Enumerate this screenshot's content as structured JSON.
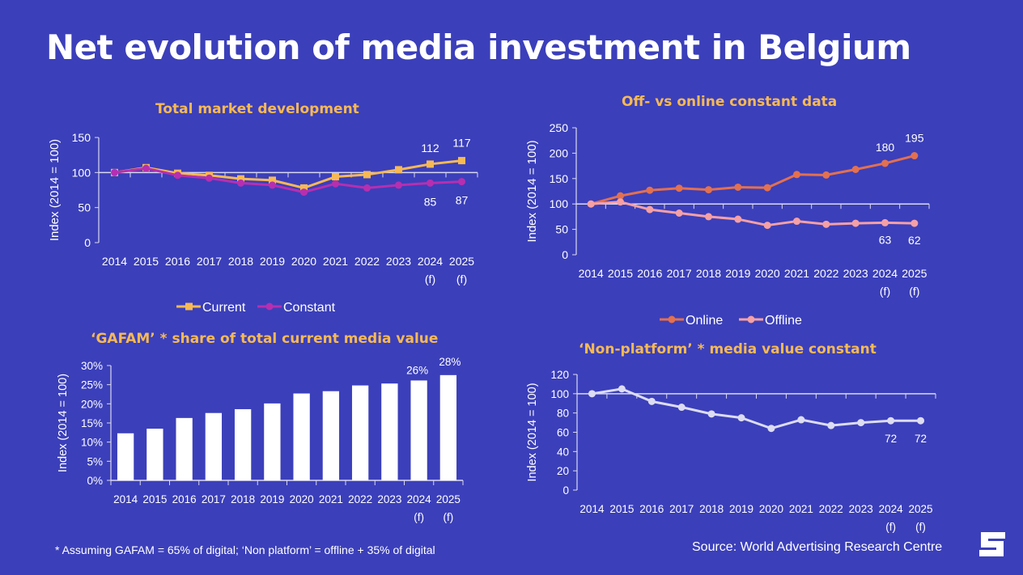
{
  "page": {
    "title": "Net evolution of media investment in Belgium",
    "footnote": "* Assuming GAFAM = 65% of digital; ‘Non platform’ = offline + 35% of digital",
    "source": "Source:  World Advertising Research Centre",
    "logo_icon": "s-logo-icon",
    "colors": {
      "background": "#3B3FBA",
      "title_accent": "#F7B955"
    }
  },
  "chart_data": [
    {
      "type": "line",
      "title": "Total market development",
      "ylabel": "Index (2014 = 100)",
      "xlabel": "",
      "categories": [
        "2014",
        "2015",
        "2016",
        "2017",
        "2018",
        "2019",
        "2020",
        "2021",
        "2022",
        "2023",
        "2024\n(f)",
        "2025\n(f)"
      ],
      "ylim": [
        0,
        150
      ],
      "yticks": [
        "0",
        "50",
        "100",
        "150"
      ],
      "baseline": 100,
      "legend": "bottom",
      "series": [
        {
          "name": "Current",
          "color": "#F7B955",
          "marker": "square",
          "values": [
            100,
            107,
            99,
            96,
            91,
            89,
            78,
            94,
            97,
            104,
            112,
            117
          ],
          "labels": {
            "10": "112",
            "11": "117"
          },
          "label_pos": "above"
        },
        {
          "name": "Constant",
          "color": "#B62FB0",
          "marker": "circle",
          "values": [
            100,
            106,
            96,
            92,
            85,
            82,
            72,
            84,
            78,
            82,
            85,
            87
          ],
          "labels": {
            "10": "85",
            "11": "87"
          },
          "label_pos": "below"
        }
      ]
    },
    {
      "type": "line",
      "title": "Off- vs online constant data",
      "ylabel": "Index (2014 = 100)",
      "xlabel": "",
      "categories": [
        "2014",
        "2015",
        "2016",
        "2017",
        "2018",
        "2019",
        "2020",
        "2021",
        "2022",
        "2023",
        "2024\n(f)",
        "2025\n(f)"
      ],
      "ylim": [
        0,
        250
      ],
      "yticks": [
        "0",
        "50",
        "100",
        "150",
        "200",
        "250"
      ],
      "baseline": 100,
      "legend": "bottom",
      "series": [
        {
          "name": "Online",
          "color": "#E3704F",
          "marker": "circle",
          "values": [
            100,
            116,
            127,
            131,
            128,
            133,
            132,
            158,
            157,
            168,
            180,
            195
          ],
          "labels": {
            "10": "180",
            "11": "195"
          },
          "label_pos": "above"
        },
        {
          "name": "Offline",
          "color": "#F5A0A6",
          "marker": "circle",
          "values": [
            100,
            104,
            89,
            82,
            75,
            70,
            58,
            66,
            60,
            62,
            63,
            62
          ],
          "labels": {
            "10": "63",
            "11": "62"
          },
          "label_pos": "below"
        }
      ]
    },
    {
      "type": "bar",
      "title": "‘GAFAM’ * share of  total  current media value",
      "ylabel": "Index (2014 = 100)",
      "xlabel": "",
      "categories": [
        "2014",
        "2015",
        "2016",
        "2017",
        "2018",
        "2019",
        "2020",
        "2021",
        "2022",
        "2023",
        "2024\n(f)",
        "2025\n(f)"
      ],
      "ylim": [
        0,
        30
      ],
      "yticks": [
        "0%",
        "5%",
        "10%",
        "15%",
        "20%",
        "25%",
        "30%"
      ],
      "legend": "none",
      "series": [
        {
          "name": "GAFAM share",
          "color": "#FFFFFF",
          "values": [
            12.3,
            13.5,
            16.3,
            17.6,
            18.6,
            20.1,
            22.7,
            23.3,
            24.8,
            25.3,
            26.1,
            27.5
          ],
          "labels": {
            "10": "26%",
            "11": "28%"
          }
        }
      ]
    },
    {
      "type": "line",
      "title": "‘Non-platform’ * media value constant",
      "ylabel": "Index (2014 = 100)",
      "xlabel": "",
      "categories": [
        "2014",
        "2015",
        "2016",
        "2017",
        "2018",
        "2019",
        "2020",
        "2021",
        "2022",
        "2023",
        "2024\n(f)",
        "2025\n(f)"
      ],
      "ylim": [
        0,
        120
      ],
      "yticks": [
        "0",
        "20",
        "40",
        "60",
        "80",
        "100",
        "120"
      ],
      "baseline": 100,
      "legend": "none",
      "series": [
        {
          "name": "Non-platform",
          "color": "#DCDCF2",
          "marker": "circle",
          "values": [
            100,
            105,
            92,
            86,
            79,
            75,
            64,
            73,
            67,
            70,
            72,
            72
          ],
          "labels": {
            "10": "72",
            "11": "72"
          },
          "label_pos": "below"
        }
      ]
    }
  ]
}
